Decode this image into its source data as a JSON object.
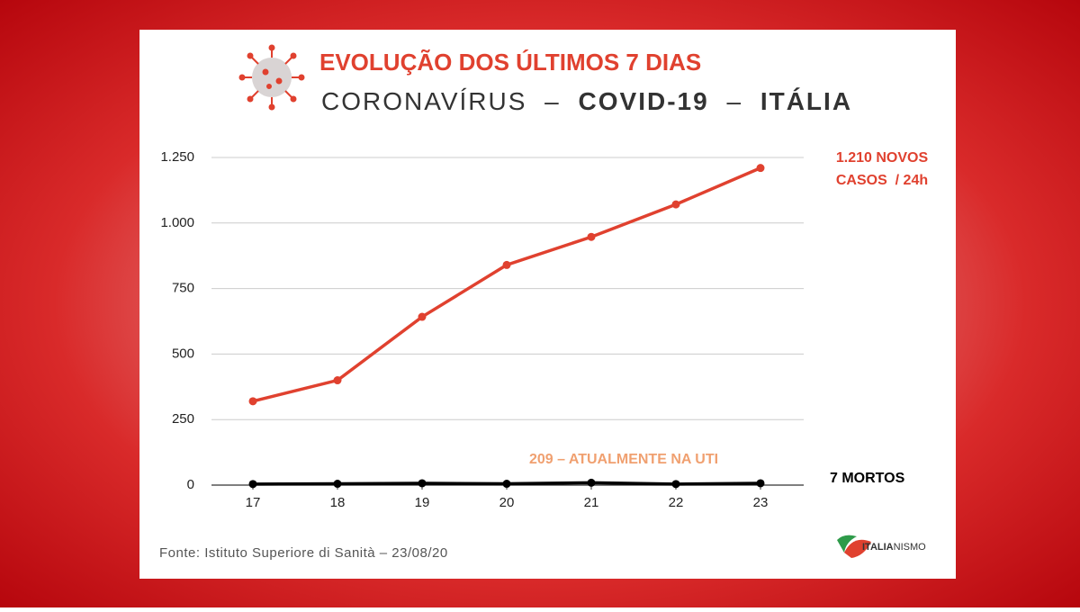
{
  "chart_data": {
    "type": "line",
    "title": "EVOLUÇÃO DOS ÚLTIMOS 7 DIAS",
    "subtitle": [
      "CORONAVÍRUS",
      "–",
      "COVID-19",
      "–",
      "ITÁLIA"
    ],
    "categories": [
      "17",
      "18",
      "19",
      "20",
      "21",
      "22",
      "23"
    ],
    "series": [
      {
        "color": "#e0412f",
        "values": [
          320,
          400,
          642,
          840,
          947,
          1071,
          1210
        ]
      },
      {
        "color": "#000000",
        "values": [
          4,
          5,
          7,
          5,
          9,
          4,
          7
        ]
      }
    ],
    "ylim": [
      0,
      1250
    ],
    "yticks": [
      0,
      250,
      500,
      750,
      {
        "value": 1000,
        "label": "1.000"
      },
      {
        "value": 1250,
        "label": "1.250"
      }
    ],
    "grid": true,
    "annotations": {
      "cases": [
        "1.210 NOVOS",
        "CASOS  / 24h"
      ],
      "icu": "209 – ATUALMENTE NA UTI",
      "deaths": "7 MORTOS"
    },
    "source": "Fonte: Istituto Superiore di Sanità – 23/08/20",
    "logo": [
      "ITALIA",
      "NISMO"
    ]
  }
}
